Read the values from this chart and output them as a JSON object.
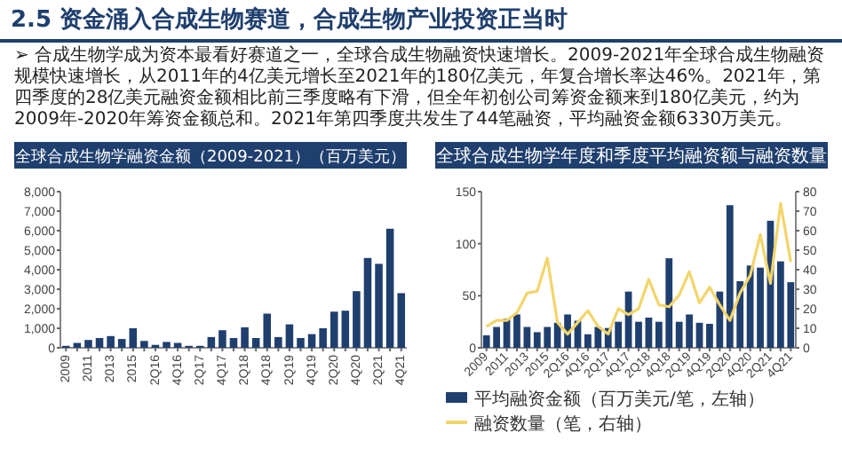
{
  "chart_data": [
    {
      "type": "bar",
      "title": "全球合成生物学融资金额（2009-2021）（百万美元）",
      "annotations": [
        "2.5 资金涌入合成生物赛道，合成生物产业投资正当时",
        "➢ 合成生物学成为资本最看好赛道之一，全球合成生物融资快速增长。2009-2021年全球合成生物融资规模快速增长，从2011年的4亿美元增长至2021年的180亿美元，年复合增长率达46%。2021年，第四季度的28亿美元融资金额相比前三季度略有下滑，但全年初创公司筹资金额来到180亿美元，约为2009年-2020年筹资金额总和。2021年第四季度共发生了44笔融资，平均融资金额6330万美元。"
      ],
      "categories": [
        "2009",
        null,
        "2011",
        null,
        "2013",
        null,
        "2015",
        null,
        "2Q16",
        null,
        "4Q16",
        null,
        "2Q17",
        null,
        "4Q17",
        null,
        "2Q18",
        null,
        "4Q18",
        null,
        "2Q19",
        null,
        "4Q19",
        null,
        "2Q20",
        null,
        "4Q20",
        null,
        "2Q21",
        null,
        "4Q21"
      ],
      "series": [
        {
          "color": "#1f3f6e",
          "values": [
            100,
            250,
            400,
            500,
            600,
            450,
            1000,
            350,
            150,
            300,
            250,
            100,
            100,
            550,
            900,
            500,
            1050,
            500,
            1750,
            550,
            1200,
            500,
            700,
            1000,
            1850,
            1900,
            2900,
            4600,
            4300,
            6100,
            2800
          ]
        }
      ],
      "ylim": [
        0,
        8000
      ],
      "yticks": [
        {
          "value": 0,
          "label": "0"
        },
        {
          "value": 1000,
          "label": "1,000"
        },
        {
          "value": 2000,
          "label": "2,000"
        },
        {
          "value": 3000,
          "label": "3,000"
        },
        {
          "value": 4000,
          "label": "4,000"
        },
        {
          "value": 5000,
          "label": "5,000"
        },
        {
          "value": 6000,
          "label": "6,000"
        },
        {
          "value": 7000,
          "label": "7,000"
        },
        {
          "value": 8000,
          "label": "8,000"
        }
      ],
      "grid": false,
      "legend": false
    },
    {
      "type": "bar",
      "title": "全球合成生物学年度和季度平均融资额与融资数量",
      "categories": [
        "2009",
        null,
        "2011",
        null,
        "2013",
        null,
        "2015",
        null,
        "2Q16",
        null,
        "4Q16",
        null,
        "2Q17",
        null,
        "4Q17",
        null,
        "2Q18",
        null,
        "4Q18",
        null,
        "2Q19",
        null,
        "4Q19",
        null,
        "2Q20",
        null,
        "4Q20",
        null,
        "2Q21",
        null,
        "4Q21"
      ],
      "series": [
        {
          "name": "平均融资金额（百万美元/笔，左轴）",
          "color": "#1f3f6e",
          "values": [
            12,
            20,
            28,
            32,
            20,
            15,
            20,
            24,
            32,
            26,
            13,
            20,
            19,
            25,
            54,
            25,
            29,
            25,
            86,
            25,
            32,
            24,
            23,
            54,
            137,
            64,
            79,
            77,
            122,
            83,
            63
          ]
        },
        {
          "name": "融资数量（笔，右轴）",
          "type": "line",
          "axis": "y2",
          "color": "#f2d56b",
          "values": [
            11,
            14,
            14,
            18,
            28,
            29,
            46,
            13,
            7,
            13,
            19,
            11,
            7,
            20,
            17,
            20,
            35,
            22,
            21,
            27,
            39,
            23,
            31,
            22,
            14,
            28,
            37,
            58,
            33,
            74,
            44
          ]
        }
      ],
      "ylim": [
        0,
        150
      ],
      "yticks": [
        0,
        50,
        100,
        150
      ],
      "y2lim": [
        0,
        80
      ],
      "y2ticks": [
        0,
        10,
        20,
        30,
        40,
        50,
        60,
        70,
        80
      ],
      "grid": false,
      "legend": "bottom",
      "marker": "none"
    }
  ]
}
